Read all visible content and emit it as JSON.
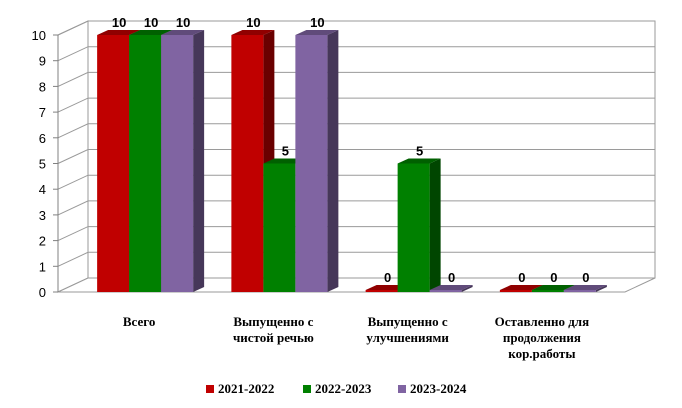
{
  "chart_data": {
    "type": "bar",
    "categories": [
      [
        "Всего"
      ],
      [
        "Выпущенно с",
        "чистой речью"
      ],
      [
        "Выпущенно с",
        "улучшениями"
      ],
      [
        "Оставленно для",
        "продолжения",
        "кор.работы"
      ]
    ],
    "series": [
      {
        "name": "2021-2022",
        "values": [
          10,
          10,
          0,
          0
        ],
        "color": "#C00000"
      },
      {
        "name": "2022-2023",
        "values": [
          10,
          5,
          5,
          0
        ],
        "color": "#008000"
      },
      {
        "name": "2023-2024",
        "values": [
          10,
          10,
          0,
          0
        ],
        "color": "#8064A2"
      }
    ],
    "ylim": [
      0,
      10
    ],
    "yticks": [
      0,
      1,
      2,
      3,
      4,
      5,
      6,
      7,
      8,
      9,
      10
    ],
    "grid": true,
    "legend": "bottom",
    "three_d": true
  }
}
